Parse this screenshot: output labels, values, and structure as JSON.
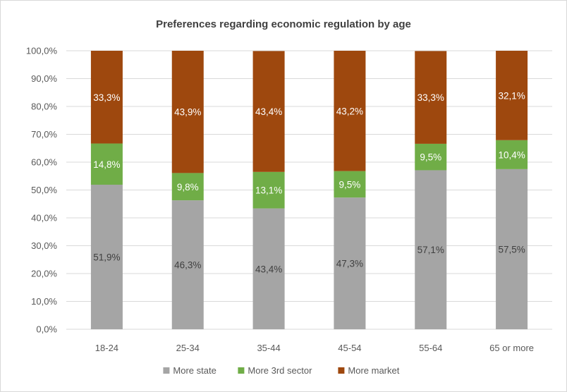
{
  "chart_data": {
    "type": "bar",
    "stacked": true,
    "title": "Preferences regarding economic regulation by age",
    "categories": [
      "18-24",
      "25-34",
      "35-44",
      "45-54",
      "55-64",
      "65 or more"
    ],
    "series": [
      {
        "name": "More state",
        "color": "#a5a5a5",
        "values": [
          51.9,
          46.3,
          43.4,
          47.3,
          57.1,
          57.5
        ],
        "labels": [
          "51,9%",
          "46,3%",
          "43,4%",
          "47,3%",
          "57,1%",
          "57,5%"
        ]
      },
      {
        "name": "More 3rd sector",
        "color": "#70ad47",
        "values": [
          14.8,
          9.8,
          13.1,
          9.5,
          9.5,
          10.4
        ],
        "labels": [
          "14,8%",
          "9,8%",
          "13,1%",
          "9,5%",
          "9,5%",
          "10,4%"
        ]
      },
      {
        "name": "More market",
        "color": "#9e480e",
        "values": [
          33.3,
          43.9,
          43.4,
          43.2,
          33.3,
          32.1
        ],
        "labels": [
          "33,3%",
          "43,9%",
          "43,4%",
          "43,2%",
          "33,3%",
          "32,1%"
        ]
      }
    ],
    "ylim": [
      0,
      100
    ],
    "yticks": [
      "0,0%",
      "10,0%",
      "20,0%",
      "30,0%",
      "40,0%",
      "50,0%",
      "60,0%",
      "70,0%",
      "80,0%",
      "90,0%",
      "100,0%"
    ],
    "grid": true,
    "legend_position": "bottom",
    "label_color": "#ffffff",
    "label_color_dark": "#404040"
  }
}
